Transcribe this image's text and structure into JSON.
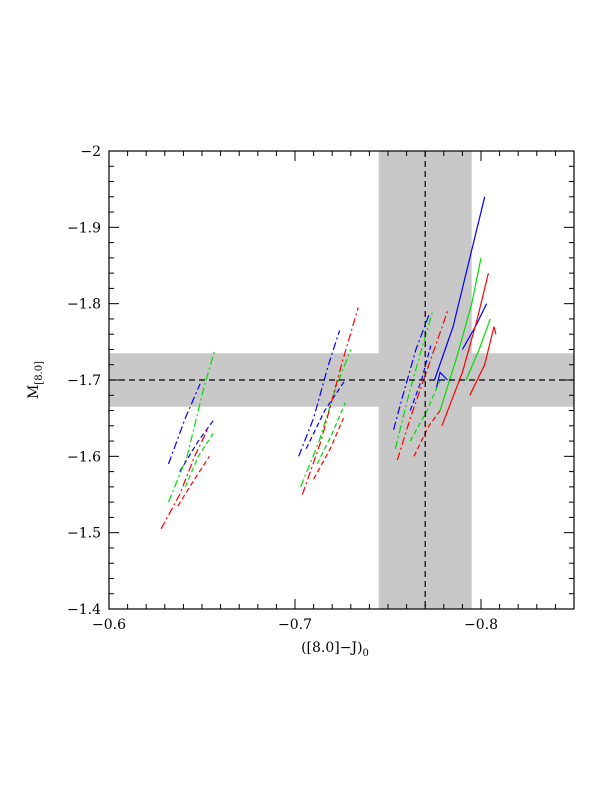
{
  "chart_data": {
    "type": "line",
    "xlabel": {
      "main": "([8.0]−J)",
      "sub": "0"
    },
    "ylabel": {
      "main": "M",
      "sub": "[8.0]"
    },
    "xlim": [
      -0.6,
      -0.85
    ],
    "ylim": [
      -1.4,
      -2.0
    ],
    "xticks": [
      {
        "value": -0.6,
        "label": "−0.6"
      },
      {
        "value": -0.7,
        "label": "−0.7"
      },
      {
        "value": -0.8,
        "label": "−0.8"
      }
    ],
    "yticks": [
      {
        "value": -1.4,
        "label": "−1.4"
      },
      {
        "value": -1.5,
        "label": "−1.5"
      },
      {
        "value": -1.6,
        "label": "−1.6"
      },
      {
        "value": -1.7,
        "label": "−1.7"
      },
      {
        "value": -1.8,
        "label": "−1.8"
      },
      {
        "value": -1.9,
        "label": "−1.9"
      },
      {
        "value": -2.0,
        "label": "−2"
      }
    ],
    "grid": false,
    "reference": {
      "x": -0.77,
      "x_band": [
        -0.745,
        -0.795
      ],
      "y": -1.7,
      "y_band": [
        -1.665,
        -1.735
      ],
      "band_color": "#c8c8c8",
      "line_color": "#000000"
    },
    "colors": {
      "blue": "#0000ff",
      "green": "#00dd00",
      "red": "#ff0000"
    },
    "series": [
      {
        "color": "blue",
        "style": "dashdot",
        "x": [
          -0.632,
          -0.641,
          -0.649
        ],
        "y": [
          -1.59,
          -1.65,
          -1.695
        ]
      },
      {
        "color": "blue",
        "style": "dashed",
        "x": [
          -0.638,
          -0.648,
          -0.657
        ],
        "y": [
          -1.58,
          -1.62,
          -1.65
        ]
      },
      {
        "color": "green",
        "style": "dashdot",
        "x": [
          -0.632,
          -0.642,
          -0.651,
          -0.657
        ],
        "y": [
          -1.54,
          -1.6,
          -1.69,
          -1.74
        ]
      },
      {
        "color": "green",
        "style": "dashed",
        "x": [
          -0.641,
          -0.648,
          -0.656
        ],
        "y": [
          -1.56,
          -1.6,
          -1.63
        ]
      },
      {
        "color": "red",
        "style": "dashdot",
        "x": [
          -0.628,
          -0.638,
          -0.646,
          -0.653
        ],
        "y": [
          -1.505,
          -1.55,
          -1.6,
          -1.635
        ]
      },
      {
        "color": "red",
        "style": "dashed",
        "x": [
          -0.637,
          -0.646,
          -0.654
        ],
        "y": [
          -1.535,
          -1.57,
          -1.6
        ]
      },
      {
        "color": "blue",
        "style": "dashdot",
        "x": [
          -0.702,
          -0.71,
          -0.718,
          -0.724
        ],
        "y": [
          -1.6,
          -1.65,
          -1.72,
          -1.765
        ]
      },
      {
        "color": "blue",
        "style": "dashed",
        "x": [
          -0.706,
          -0.716,
          -0.727
        ],
        "y": [
          -1.61,
          -1.66,
          -1.7
        ]
      },
      {
        "color": "green",
        "style": "dashdot",
        "x": [
          -0.703,
          -0.713,
          -0.722,
          -0.73
        ],
        "y": [
          -1.56,
          -1.62,
          -1.69,
          -1.74
        ]
      },
      {
        "color": "green",
        "style": "dashed",
        "x": [
          -0.712,
          -0.72,
          -0.727
        ],
        "y": [
          -1.59,
          -1.63,
          -1.67
        ]
      },
      {
        "color": "red",
        "style": "dashdot",
        "x": [
          -0.704,
          -0.714,
          -0.725,
          -0.734
        ],
        "y": [
          -1.55,
          -1.62,
          -1.72,
          -1.795
        ]
      },
      {
        "color": "red",
        "style": "dashed",
        "x": [
          -0.71,
          -0.719,
          -0.726
        ],
        "y": [
          -1.57,
          -1.61,
          -1.65
        ]
      },
      {
        "color": "blue",
        "style": "dashdot",
        "x": [
          -0.753,
          -0.758,
          -0.765,
          -0.772
        ],
        "y": [
          -1.635,
          -1.68,
          -1.74,
          -1.785
        ]
      },
      {
        "color": "blue",
        "style": "dashed",
        "x": [
          -0.762,
          -0.768,
          -0.773
        ],
        "y": [
          -1.66,
          -1.7,
          -1.745
        ]
      },
      {
        "color": "blue",
        "style": "solid",
        "x": [
          -0.775,
          -0.785,
          -0.795,
          -0.802
        ],
        "y": [
          -1.7,
          -1.77,
          -1.87,
          -1.94
        ]
      },
      {
        "color": "blue",
        "style": "solid",
        "x": [
          -0.79,
          -0.797,
          -0.803
        ],
        "y": [
          -1.74,
          -1.77,
          -1.8
        ]
      },
      {
        "color": "blue",
        "style": "solid",
        "x": [
          -0.776,
          -0.778,
          -0.782
        ],
        "y": [
          -1.69,
          -1.71,
          -1.7
        ]
      },
      {
        "color": "green",
        "style": "dashdot",
        "x": [
          -0.754,
          -0.76,
          -0.768,
          -0.774
        ],
        "y": [
          -1.61,
          -1.67,
          -1.74,
          -1.79
        ]
      },
      {
        "color": "green",
        "style": "dashed",
        "x": [
          -0.762,
          -0.771,
          -0.778
        ],
        "y": [
          -1.62,
          -1.66,
          -1.7
        ]
      },
      {
        "color": "green",
        "style": "solid",
        "x": [
          -0.778,
          -0.787,
          -0.795,
          -0.8
        ],
        "y": [
          -1.66,
          -1.73,
          -1.8,
          -1.86
        ]
      },
      {
        "color": "green",
        "style": "solid",
        "x": [
          -0.792,
          -0.799,
          -0.805
        ],
        "y": [
          -1.7,
          -1.74,
          -1.78
        ]
      },
      {
        "color": "red",
        "style": "dashdot",
        "x": [
          -0.755,
          -0.762,
          -0.772,
          -0.782
        ],
        "y": [
          -1.595,
          -1.65,
          -1.72,
          -1.79
        ]
      },
      {
        "color": "red",
        "style": "dashed",
        "x": [
          -0.764,
          -0.772,
          -0.778
        ],
        "y": [
          -1.6,
          -1.64,
          -1.66
        ]
      },
      {
        "color": "red",
        "style": "solid",
        "x": [
          -0.779,
          -0.79,
          -0.798,
          -0.804
        ],
        "y": [
          -1.64,
          -1.71,
          -1.78,
          -1.84
        ]
      },
      {
        "color": "red",
        "style": "solid",
        "x": [
          -0.794,
          -0.802,
          -0.807,
          -0.808
        ],
        "y": [
          -1.68,
          -1.72,
          -1.77,
          -1.76
        ]
      }
    ]
  }
}
